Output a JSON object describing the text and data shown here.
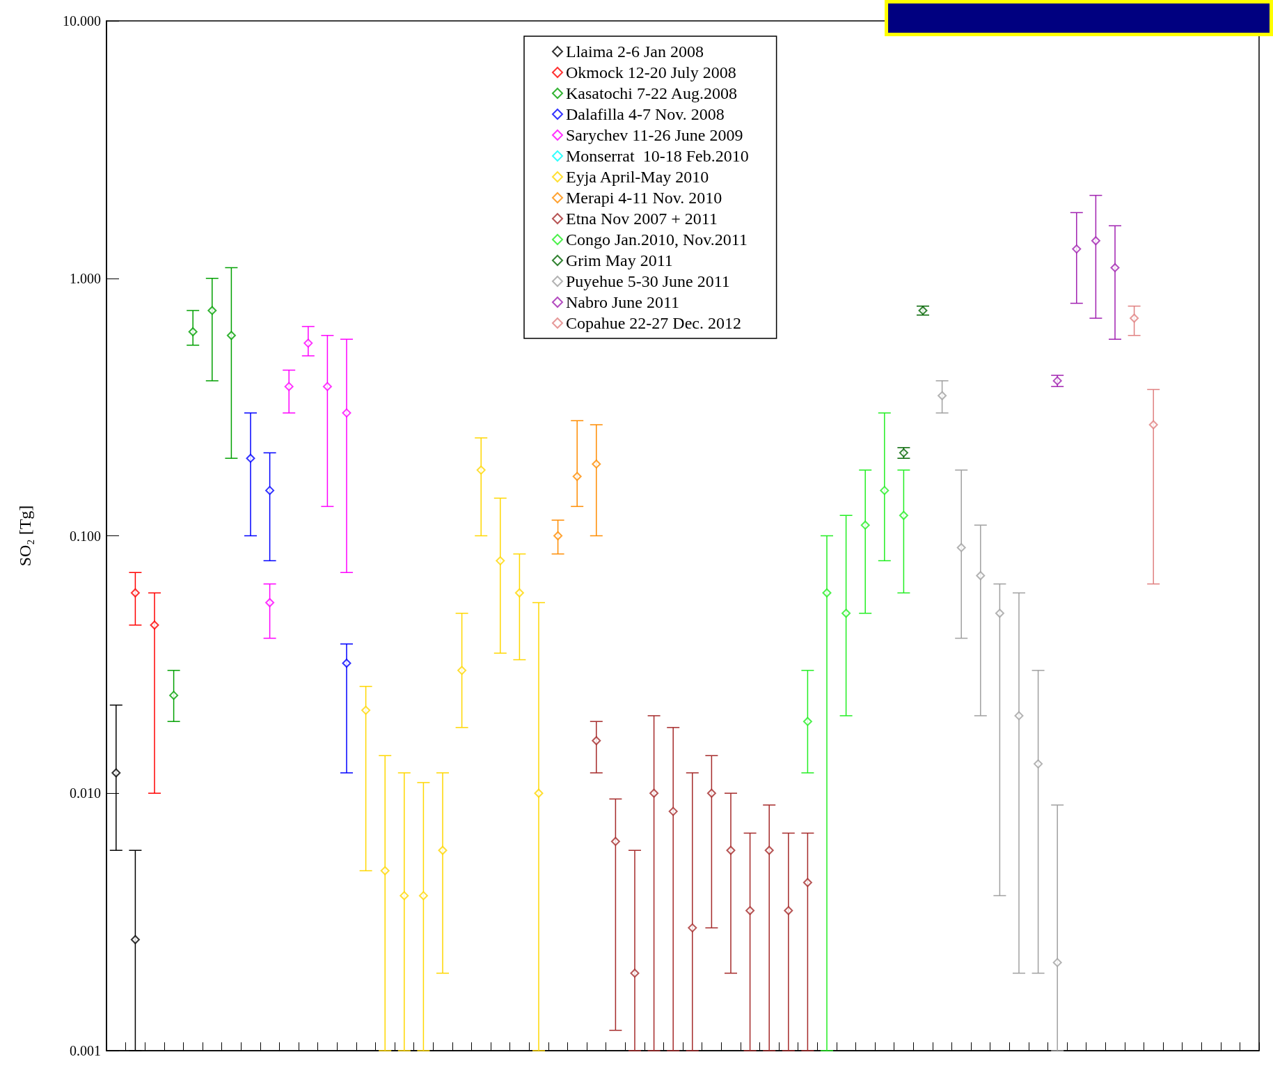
{
  "chart_data": {
    "type": "scatter",
    "ylabel": "SO₂ [Tg]",
    "log": "y",
    "ylim": [
      0.001,
      10
    ],
    "yticks": [
      {
        "value": 0.001,
        "label": "0.001"
      },
      {
        "value": 0.01,
        "label": "0.010"
      },
      {
        "value": 0.1,
        "label": "0.100"
      },
      {
        "value": 1,
        "label": "1.000"
      },
      {
        "value": 10,
        "label": "10.000"
      }
    ],
    "tick_labels": "y",
    "grid": false,
    "legend": "top",
    "marker": "diamond",
    "categories": [
      null,
      null,
      null,
      null,
      null,
      null,
      null,
      null,
      null,
      null,
      null,
      null,
      null,
      null,
      null,
      null,
      null,
      null,
      null,
      null,
      null,
      null,
      null,
      null,
      null,
      null,
      null,
      null,
      null,
      null,
      null,
      null,
      null,
      null,
      null,
      null,
      null,
      null,
      null,
      null,
      null,
      null,
      null,
      null,
      null,
      null,
      null,
      null,
      null,
      null,
      null,
      null,
      null,
      null,
      null,
      null,
      null,
      null,
      null,
      null
    ],
    "series": [
      {
        "name": "Llaima 2-6 Jan 2008",
        "color": "#000000",
        "values": [
          0.012,
          0.0027,
          null,
          null,
          null,
          null,
          null,
          null,
          null,
          null,
          null,
          null,
          null,
          null,
          null,
          null,
          null,
          null,
          null,
          null,
          null,
          null,
          null,
          null,
          null,
          null,
          null,
          null,
          null,
          null,
          null,
          null,
          null,
          null,
          null,
          null,
          null,
          null,
          null,
          null,
          null,
          null,
          null,
          null,
          null,
          null,
          null,
          null,
          null,
          null,
          null,
          null,
          null,
          null,
          null,
          null,
          null,
          null,
          null,
          null
        ],
        "errors": [
          [
            0.006,
            0.022
          ],
          [
            0.001,
            0.006
          ],
          null,
          null,
          null,
          null,
          null,
          null,
          null,
          null,
          null,
          null,
          null,
          null,
          null,
          null,
          null,
          null,
          null,
          null,
          null,
          null,
          null,
          null,
          null,
          null,
          null,
          null,
          null,
          null,
          null,
          null,
          null,
          null,
          null,
          null,
          null,
          null,
          null,
          null,
          null,
          null,
          null,
          null,
          null,
          null,
          null,
          null,
          null,
          null,
          null,
          null,
          null,
          null,
          null,
          null,
          null,
          null,
          null,
          null
        ]
      },
      {
        "name": "Okmock 12-20 July 2008",
        "color": "#ff0000",
        "values": [
          null,
          0.06,
          0.045,
          null,
          null,
          null,
          null,
          null,
          null,
          null,
          null,
          null,
          null,
          null,
          null,
          null,
          null,
          null,
          null,
          null,
          null,
          null,
          null,
          null,
          null,
          null,
          null,
          null,
          null,
          null,
          null,
          null,
          null,
          null,
          null,
          null,
          null,
          null,
          null,
          null,
          null,
          null,
          null,
          null,
          null,
          null,
          null,
          null,
          null,
          null,
          null,
          null,
          null,
          null,
          null,
          null,
          null,
          null,
          null,
          null
        ],
        "errors": [
          null,
          [
            0.045,
            0.072
          ],
          [
            0.01,
            0.06
          ],
          null,
          null,
          null,
          null,
          null,
          null,
          null,
          null,
          null,
          null,
          null,
          null,
          null,
          null,
          null,
          null,
          null,
          null,
          null,
          null,
          null,
          null,
          null,
          null,
          null,
          null,
          null,
          null,
          null,
          null,
          null,
          null,
          null,
          null,
          null,
          null,
          null,
          null,
          null,
          null,
          null,
          null,
          null,
          null,
          null,
          null,
          null,
          null,
          null,
          null,
          null,
          null,
          null,
          null,
          null,
          null,
          null
        ]
      },
      {
        "name": "Kasatochi 7-22 Aug.2008",
        "color": "#00a000",
        "values": [
          null,
          null,
          null,
          0.024,
          0.62,
          0.75,
          0.6,
          null,
          null,
          null,
          null,
          null,
          null,
          null,
          null,
          null,
          null,
          null,
          null,
          null,
          null,
          null,
          null,
          null,
          null,
          null,
          null,
          null,
          null,
          null,
          null,
          null,
          null,
          null,
          null,
          null,
          null,
          null,
          null,
          null,
          null,
          null,
          null,
          null,
          null,
          null,
          null,
          null,
          null,
          null,
          null,
          null,
          null,
          null,
          null,
          null,
          null,
          null,
          null,
          null
        ],
        "errors": [
          null,
          null,
          null,
          [
            0.019,
            0.03
          ],
          [
            0.55,
            0.75
          ],
          [
            0.4,
            1.0
          ],
          [
            0.2,
            1.1
          ],
          null,
          null,
          null,
          null,
          null,
          null,
          null,
          null,
          null,
          null,
          null,
          null,
          null,
          null,
          null,
          null,
          null,
          null,
          null,
          null,
          null,
          null,
          null,
          null,
          null,
          null,
          null,
          null,
          null,
          null,
          null,
          null,
          null,
          null,
          null,
          null,
          null,
          null,
          null,
          null,
          null,
          null,
          null,
          null,
          null,
          null,
          null,
          null,
          null,
          null,
          null,
          null,
          null
        ]
      },
      {
        "name": "Dalafilla 4-7 Nov. 2008",
        "color": "#0000ff",
        "values": [
          null,
          null,
          null,
          null,
          null,
          null,
          null,
          0.2,
          0.15,
          null,
          null,
          null,
          0.032,
          null,
          null,
          null,
          null,
          null,
          null,
          null,
          null,
          null,
          null,
          null,
          null,
          null,
          null,
          null,
          null,
          null,
          null,
          null,
          null,
          null,
          null,
          null,
          null,
          null,
          null,
          null,
          null,
          null,
          null,
          null,
          null,
          null,
          null,
          null,
          null,
          null,
          null,
          null,
          null,
          null,
          null,
          null,
          null,
          null,
          null,
          null
        ],
        "errors": [
          null,
          null,
          null,
          null,
          null,
          null,
          null,
          [
            0.1,
            0.3
          ],
          [
            0.08,
            0.21
          ],
          null,
          null,
          null,
          [
            0.012,
            0.038
          ],
          null,
          null,
          null,
          null,
          null,
          null,
          null,
          null,
          null,
          null,
          null,
          null,
          null,
          null,
          null,
          null,
          null,
          null,
          null,
          null,
          null,
          null,
          null,
          null,
          null,
          null,
          null,
          null,
          null,
          null,
          null,
          null,
          null,
          null,
          null,
          null,
          null,
          null,
          null,
          null,
          null,
          null,
          null,
          null,
          null,
          null,
          null
        ]
      },
      {
        "name": "Sarychev 11-26 June 2009",
        "color": "#ff00ff",
        "values": [
          null,
          null,
          null,
          null,
          null,
          null,
          null,
          null,
          0.055,
          0.38,
          0.56,
          0.38,
          0.3,
          null,
          null,
          null,
          null,
          null,
          null,
          null,
          null,
          null,
          null,
          null,
          null,
          null,
          null,
          null,
          null,
          null,
          null,
          null,
          null,
          null,
          null,
          null,
          null,
          null,
          null,
          null,
          null,
          null,
          null,
          null,
          null,
          null,
          null,
          null,
          null,
          null,
          null,
          null,
          null,
          null,
          null,
          null,
          null,
          null,
          null,
          null
        ],
        "errors": [
          null,
          null,
          null,
          null,
          null,
          null,
          null,
          null,
          [
            0.04,
            0.065
          ],
          [
            0.3,
            0.44
          ],
          [
            0.5,
            0.65
          ],
          [
            0.13,
            0.6
          ],
          [
            0.072,
            0.58
          ],
          null,
          null,
          null,
          null,
          null,
          null,
          null,
          null,
          null,
          null,
          null,
          null,
          null,
          null,
          null,
          null,
          null,
          null,
          null,
          null,
          null,
          null,
          null,
          null,
          null,
          null,
          null,
          null,
          null,
          null,
          null,
          null,
          null,
          null,
          null,
          null,
          null,
          null,
          null,
          null,
          null,
          null,
          null,
          null,
          null,
          null,
          null
        ]
      },
      {
        "name": "Monserrat  10-18 Feb.2010",
        "color": "#00ffff",
        "values": [
          null,
          null,
          null,
          null,
          null,
          null,
          null,
          null,
          null,
          null,
          null,
          null,
          null,
          null,
          null,
          null,
          null,
          null,
          null,
          null,
          null,
          null,
          null,
          null,
          null,
          null,
          null,
          null,
          null,
          null,
          null,
          null,
          null,
          null,
          null,
          null,
          null,
          null,
          null,
          null,
          null,
          null,
          null,
          null,
          null,
          null,
          null,
          null,
          null,
          null,
          null,
          null,
          null,
          null,
          null,
          null,
          null,
          null,
          null,
          null
        ]
      },
      {
        "name": "Eyja April-May 2010",
        "color": "#ffd700",
        "values": [
          null,
          null,
          null,
          null,
          null,
          null,
          null,
          null,
          null,
          null,
          null,
          null,
          null,
          0.021,
          0.005,
          0.004,
          0.004,
          0.006,
          0.03,
          0.18,
          0.08,
          0.06,
          0.01,
          null,
          null,
          null,
          null,
          null,
          null,
          null,
          null,
          null,
          null,
          null,
          null,
          null,
          null,
          null,
          null,
          null,
          null,
          null,
          null,
          null,
          null,
          null,
          null,
          null,
          null,
          null,
          null,
          null,
          null,
          null,
          null,
          null,
          null,
          null,
          null,
          null
        ],
        "errors": [
          null,
          null,
          null,
          null,
          null,
          null,
          null,
          null,
          null,
          null,
          null,
          null,
          null,
          [
            0.005,
            0.026
          ],
          [
            0.001,
            0.014
          ],
          [
            0.001,
            0.012
          ],
          [
            0.001,
            0.011
          ],
          [
            0.002,
            0.012
          ],
          [
            0.018,
            0.05
          ],
          [
            0.1,
            0.24
          ],
          [
            0.035,
            0.14
          ],
          [
            0.033,
            0.085
          ],
          [
            0.001,
            0.055
          ],
          null,
          null,
          null,
          null,
          null,
          null,
          null,
          null,
          null,
          null,
          null,
          null,
          null,
          null,
          null,
          null,
          null,
          null,
          null,
          null,
          null,
          null,
          null,
          null,
          null,
          null,
          null,
          null,
          null,
          null,
          null,
          null,
          null,
          null,
          null,
          null,
          null
        ]
      },
      {
        "name": "Merapi 4-11 Nov. 2010",
        "color": "#ff8c00",
        "values": [
          null,
          null,
          null,
          null,
          null,
          null,
          null,
          null,
          null,
          null,
          null,
          null,
          null,
          null,
          null,
          null,
          null,
          null,
          null,
          null,
          null,
          null,
          null,
          0.1,
          0.17,
          0.19,
          null,
          null,
          null,
          null,
          null,
          null,
          null,
          null,
          null,
          null,
          null,
          null,
          null,
          null,
          null,
          null,
          null,
          null,
          null,
          null,
          null,
          null,
          null,
          null,
          null,
          null,
          null,
          null,
          null,
          null,
          null,
          null,
          null,
          null
        ],
        "errors": [
          null,
          null,
          null,
          null,
          null,
          null,
          null,
          null,
          null,
          null,
          null,
          null,
          null,
          null,
          null,
          null,
          null,
          null,
          null,
          null,
          null,
          null,
          null,
          [
            0.085,
            0.115
          ],
          [
            0.13,
            0.28
          ],
          [
            0.1,
            0.27
          ],
          null,
          null,
          null,
          null,
          null,
          null,
          null,
          null,
          null,
          null,
          null,
          null,
          null,
          null,
          null,
          null,
          null,
          null,
          null,
          null,
          null,
          null,
          null,
          null,
          null,
          null,
          null,
          null,
          null,
          null,
          null,
          null,
          null,
          null
        ]
      },
      {
        "name": "Etna Nov 2007 + 2011",
        "color": "#a52a2a",
        "values": [
          null,
          null,
          null,
          null,
          null,
          null,
          null,
          null,
          null,
          null,
          null,
          null,
          null,
          null,
          null,
          null,
          null,
          null,
          null,
          null,
          null,
          null,
          null,
          null,
          null,
          0.016,
          0.0065,
          0.002,
          0.01,
          0.0085,
          0.003,
          0.01,
          0.006,
          0.0035,
          0.006,
          0.0035,
          0.0045,
          null,
          null,
          null,
          null,
          null,
          null,
          null,
          null,
          null,
          null,
          null,
          null,
          null,
          null,
          null,
          null,
          null,
          null,
          null,
          null,
          null,
          null,
          null
        ],
        "errors": [
          null,
          null,
          null,
          null,
          null,
          null,
          null,
          null,
          null,
          null,
          null,
          null,
          null,
          null,
          null,
          null,
          null,
          null,
          null,
          null,
          null,
          null,
          null,
          null,
          null,
          [
            0.012,
            0.019
          ],
          [
            0.0012,
            0.0095
          ],
          [
            0.001,
            0.006
          ],
          [
            0.001,
            0.02
          ],
          [
            0.001,
            0.018
          ],
          [
            0.001,
            0.012
          ],
          [
            0.003,
            0.014
          ],
          [
            0.002,
            0.01
          ],
          [
            0.001,
            0.007
          ],
          [
            0.001,
            0.009
          ],
          [
            0.001,
            0.007
          ],
          [
            0.001,
            0.007
          ],
          null,
          null,
          null,
          null,
          null,
          null,
          null,
          null,
          null,
          null,
          null,
          null,
          null,
          null,
          null,
          null,
          null,
          null,
          null,
          null,
          null,
          null,
          null
        ]
      },
      {
        "name": "Congo Jan.2010, Nov.2011",
        "color": "#22ee22",
        "values": [
          null,
          null,
          null,
          null,
          null,
          null,
          null,
          null,
          null,
          null,
          null,
          null,
          null,
          null,
          null,
          null,
          null,
          null,
          null,
          null,
          null,
          null,
          null,
          null,
          null,
          null,
          null,
          null,
          null,
          null,
          null,
          null,
          null,
          null,
          null,
          null,
          0.019,
          0.06,
          0.05,
          0.11,
          0.15,
          0.12,
          null,
          null,
          null,
          null,
          null,
          null,
          null,
          null,
          null,
          null,
          null,
          null,
          null,
          null,
          null,
          null,
          null,
          null
        ],
        "errors": [
          null,
          null,
          null,
          null,
          null,
          null,
          null,
          null,
          null,
          null,
          null,
          null,
          null,
          null,
          null,
          null,
          null,
          null,
          null,
          null,
          null,
          null,
          null,
          null,
          null,
          null,
          null,
          null,
          null,
          null,
          null,
          null,
          null,
          null,
          null,
          null,
          [
            0.012,
            0.03
          ],
          [
            0.001,
            0.1
          ],
          [
            0.02,
            0.12
          ],
          [
            0.05,
            0.18
          ],
          [
            0.08,
            0.3
          ],
          [
            0.06,
            0.18
          ],
          null,
          null,
          null,
          null,
          null,
          null,
          null,
          null,
          null,
          null,
          null,
          null,
          null,
          null,
          null,
          null,
          null,
          null
        ]
      },
      {
        "name": "Grim May 2011",
        "color": "#006400",
        "values": [
          null,
          null,
          null,
          null,
          null,
          null,
          null,
          null,
          null,
          null,
          null,
          null,
          null,
          null,
          null,
          null,
          null,
          null,
          null,
          null,
          null,
          null,
          null,
          null,
          null,
          null,
          null,
          null,
          null,
          null,
          null,
          null,
          null,
          null,
          null,
          null,
          null,
          null,
          null,
          null,
          null,
          0.21,
          0.75,
          null,
          null,
          null,
          null,
          null,
          null,
          null,
          null,
          null,
          null,
          null,
          null,
          null,
          null,
          null,
          null,
          null
        ],
        "errors": [
          null,
          null,
          null,
          null,
          null,
          null,
          null,
          null,
          null,
          null,
          null,
          null,
          null,
          null,
          null,
          null,
          null,
          null,
          null,
          null,
          null,
          null,
          null,
          null,
          null,
          null,
          null,
          null,
          null,
          null,
          null,
          null,
          null,
          null,
          null,
          null,
          null,
          null,
          null,
          null,
          null,
          [
            0.2,
            0.22
          ],
          [
            0.72,
            0.78
          ],
          null,
          null,
          null,
          null,
          null,
          null,
          null,
          null,
          null,
          null,
          null,
          null,
          null,
          null,
          null,
          null,
          null
        ]
      },
      {
        "name": "Puyehue 5-30 June 2011",
        "color": "#a0a0a0",
        "values": [
          null,
          null,
          null,
          null,
          null,
          null,
          null,
          null,
          null,
          null,
          null,
          null,
          null,
          null,
          null,
          null,
          null,
          null,
          null,
          null,
          null,
          null,
          null,
          null,
          null,
          null,
          null,
          null,
          null,
          null,
          null,
          null,
          null,
          null,
          null,
          null,
          null,
          null,
          null,
          null,
          null,
          null,
          null,
          0.35,
          0.09,
          0.07,
          0.05,
          0.02,
          0.013,
          0.0022,
          null,
          null,
          null,
          null,
          null,
          null,
          null,
          null,
          null,
          null
        ],
        "errors": [
          null,
          null,
          null,
          null,
          null,
          null,
          null,
          null,
          null,
          null,
          null,
          null,
          null,
          null,
          null,
          null,
          null,
          null,
          null,
          null,
          null,
          null,
          null,
          null,
          null,
          null,
          null,
          null,
          null,
          null,
          null,
          null,
          null,
          null,
          null,
          null,
          null,
          null,
          null,
          null,
          null,
          null,
          null,
          [
            0.3,
            0.4
          ],
          [
            0.04,
            0.18
          ],
          [
            0.02,
            0.11
          ],
          [
            0.004,
            0.065
          ],
          [
            0.002,
            0.06
          ],
          [
            0.002,
            0.03
          ],
          [
            0.001,
            0.009
          ],
          null,
          null,
          null,
          null,
          null,
          null,
          null,
          null,
          null,
          null
        ]
      },
      {
        "name": "Nabro June 2011",
        "color": "#a020b0",
        "values": [
          null,
          null,
          null,
          null,
          null,
          null,
          null,
          null,
          null,
          null,
          null,
          null,
          null,
          null,
          null,
          null,
          null,
          null,
          null,
          null,
          null,
          null,
          null,
          null,
          null,
          null,
          null,
          null,
          null,
          null,
          null,
          null,
          null,
          null,
          null,
          null,
          null,
          null,
          null,
          null,
          null,
          null,
          null,
          null,
          null,
          null,
          null,
          null,
          null,
          0.4,
          1.3,
          1.4,
          1.1,
          null,
          null,
          null,
          null,
          null,
          null,
          null
        ],
        "errors": [
          null,
          null,
          null,
          null,
          null,
          null,
          null,
          null,
          null,
          null,
          null,
          null,
          null,
          null,
          null,
          null,
          null,
          null,
          null,
          null,
          null,
          null,
          null,
          null,
          null,
          null,
          null,
          null,
          null,
          null,
          null,
          null,
          null,
          null,
          null,
          null,
          null,
          null,
          null,
          null,
          null,
          null,
          null,
          null,
          null,
          null,
          null,
          null,
          null,
          [
            0.38,
            0.42
          ],
          [
            0.8,
            1.8
          ],
          [
            0.7,
            2.1
          ],
          [
            0.58,
            1.6
          ],
          null,
          null,
          null,
          null,
          null,
          null,
          null
        ]
      },
      {
        "name": "Copahue 22-27 Dec. 2012",
        "color": "#e08080",
        "values": [
          null,
          null,
          null,
          null,
          null,
          null,
          null,
          null,
          null,
          null,
          null,
          null,
          null,
          null,
          null,
          null,
          null,
          null,
          null,
          null,
          null,
          null,
          null,
          null,
          null,
          null,
          null,
          null,
          null,
          null,
          null,
          null,
          null,
          null,
          null,
          null,
          null,
          null,
          null,
          null,
          null,
          null,
          null,
          null,
          null,
          null,
          null,
          null,
          null,
          null,
          null,
          null,
          null,
          0.7,
          0.27,
          null,
          null,
          null,
          null,
          null
        ],
        "errors": [
          null,
          null,
          null,
          null,
          null,
          null,
          null,
          null,
          null,
          null,
          null,
          null,
          null,
          null,
          null,
          null,
          null,
          null,
          null,
          null,
          null,
          null,
          null,
          null,
          null,
          null,
          null,
          null,
          null,
          null,
          null,
          null,
          null,
          null,
          null,
          null,
          null,
          null,
          null,
          null,
          null,
          null,
          null,
          null,
          null,
          null,
          null,
          null,
          null,
          null,
          null,
          null,
          null,
          [
            0.6,
            0.78
          ],
          [
            0.065,
            0.37
          ],
          null,
          null,
          null,
          null,
          null
        ]
      }
    ]
  }
}
